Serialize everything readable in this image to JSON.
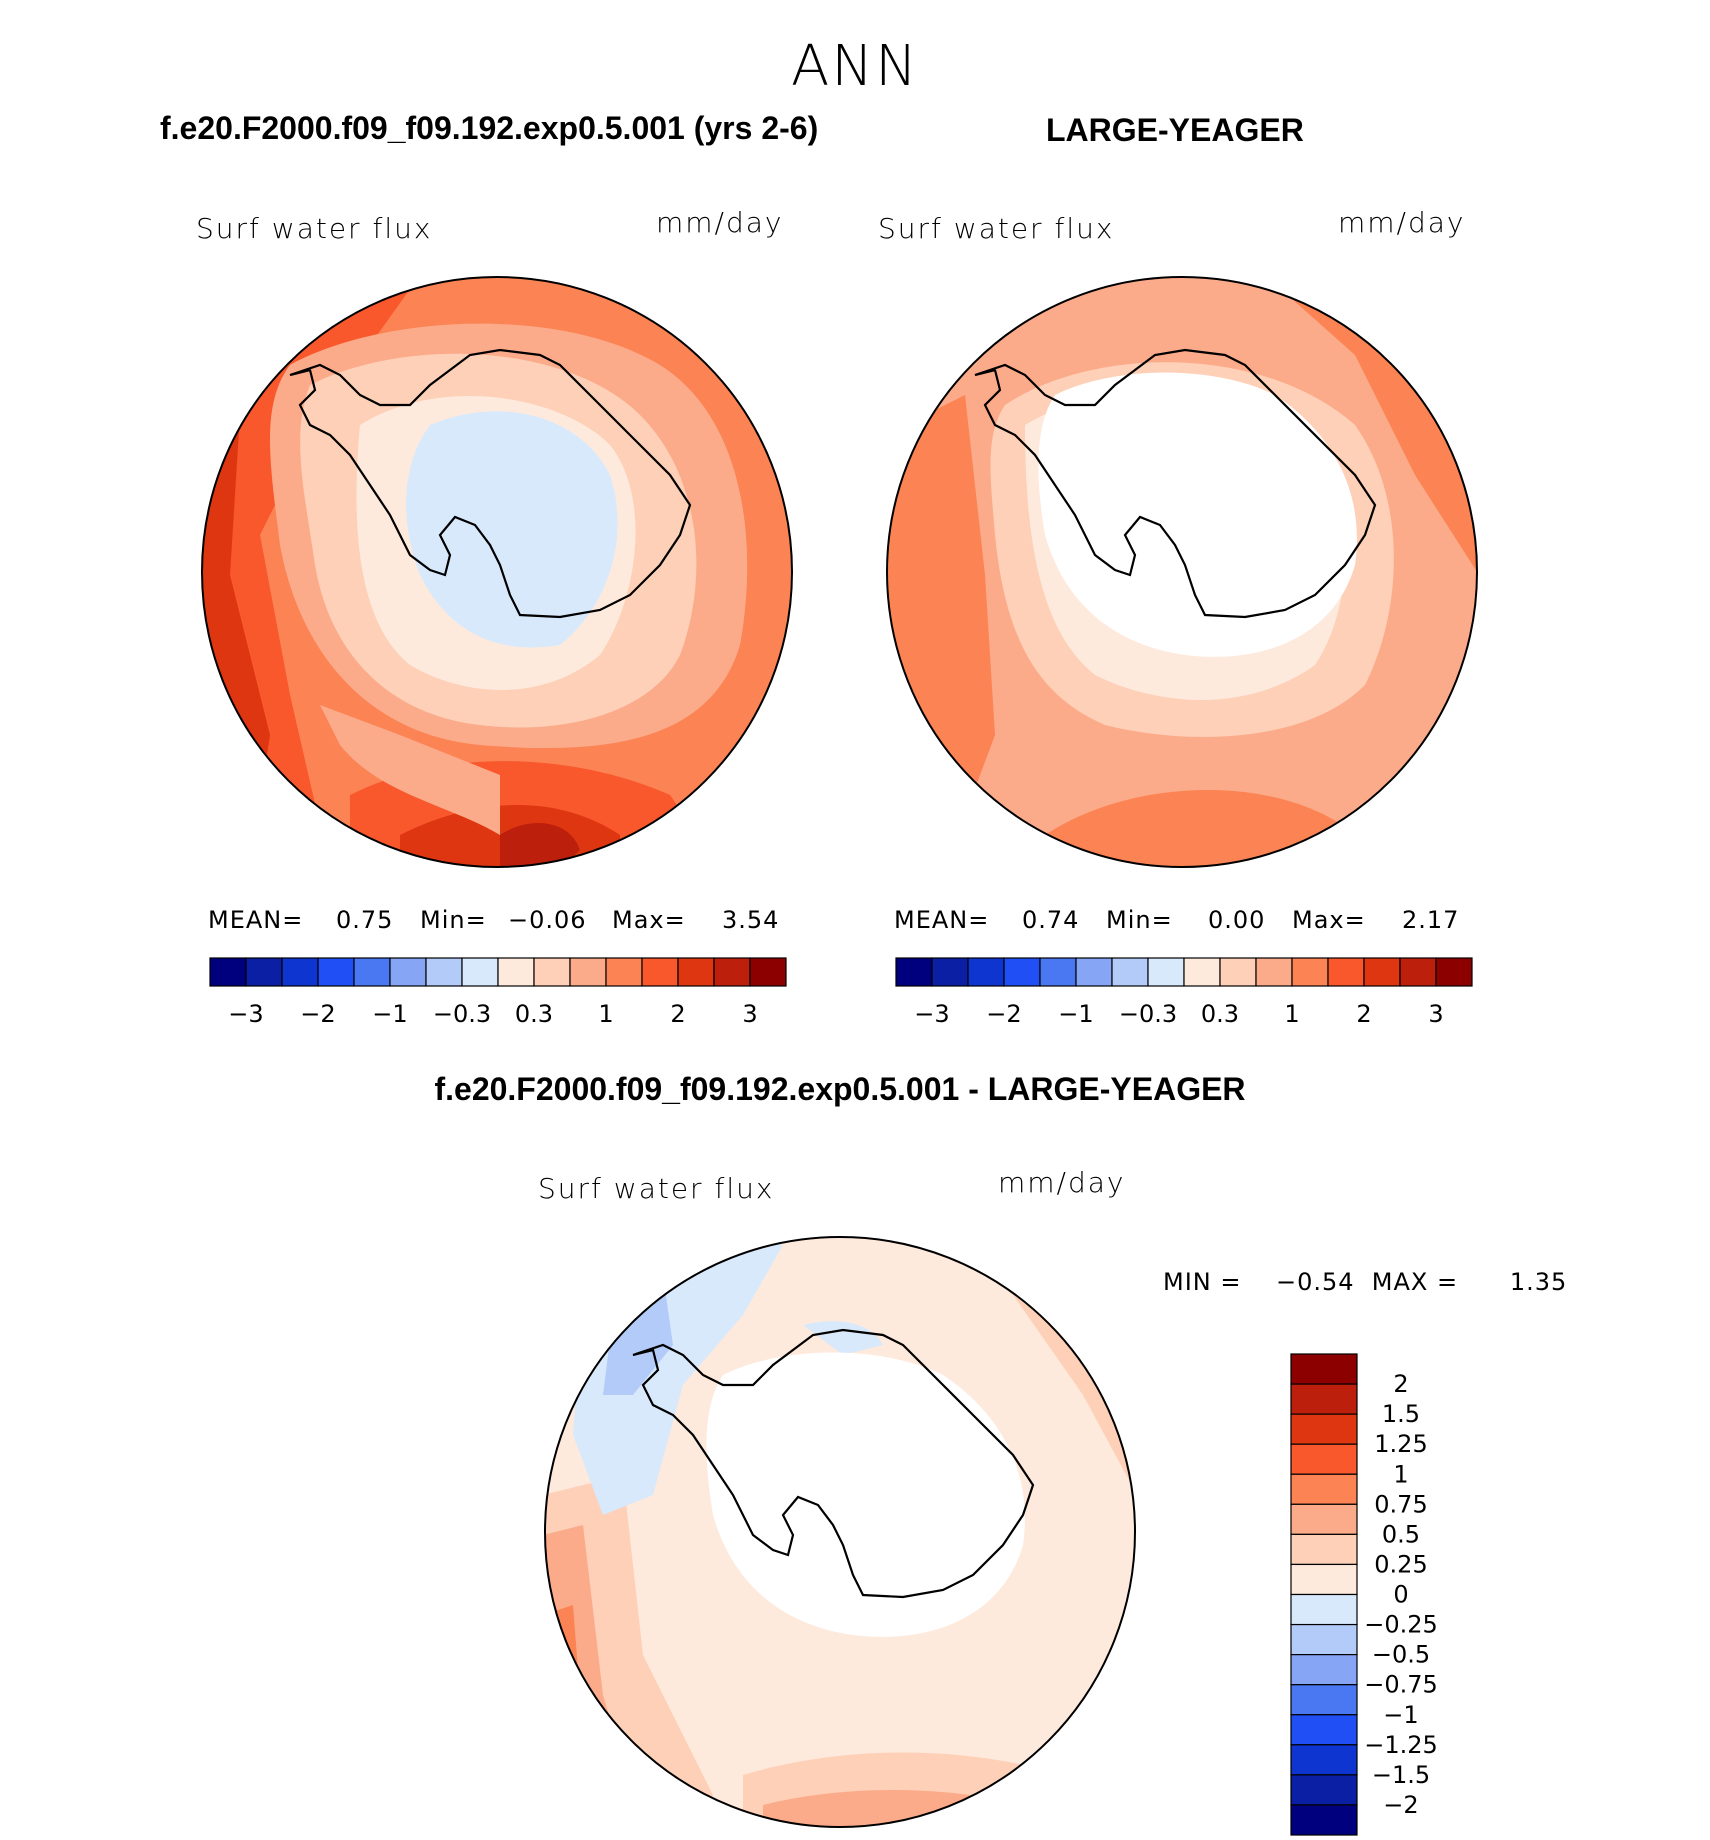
{
  "title": "ANN",
  "colors": {
    "abs_scale": [
      "#00007f",
      "#0b1fa4",
      "#0f35d1",
      "#1f4ff5",
      "#4a77f2",
      "#86a6f5",
      "#b3cbf8",
      "#d9e9fc",
      "#feeadc",
      "#fdd0b7",
      "#fcab8a",
      "#fb8354",
      "#f9572c",
      "#de3611",
      "#bc200d",
      "#8c0000"
    ],
    "diff_scale": [
      "#8c0000",
      "#bc200d",
      "#de3611",
      "#f9572c",
      "#fb8354",
      "#fcab8a",
      "#fdd0b7",
      "#feeadc",
      "#d9e9fc",
      "#b3cbf8",
      "#86a6f5",
      "#4a77f2",
      "#1f4ff5",
      "#0f35d1",
      "#0b1fa4",
      "#00007f"
    ],
    "land": "#ffffff",
    "outline": "#000000"
  },
  "panels": {
    "left": {
      "case_title": "f.e20.F2000.f09_f09.192.exp0.5.001 (yrs 2-6)",
      "variable": "Surf water flux",
      "units": "mm/day",
      "mean_label": "MEAN=",
      "mean": "0.75",
      "min_label": "Min=",
      "min": "−0.06",
      "max_label": "Max=",
      "max": "3.54"
    },
    "right": {
      "case_title": "LARGE-YEAGER",
      "variable": "Surf water flux",
      "units": "mm/day",
      "mean_label": "MEAN=",
      "mean": "0.74",
      "min_label": "Min=",
      "min": "0.00",
      "max_label": "Max=",
      "max": "2.17"
    },
    "diff": {
      "case_title": "f.e20.F2000.f09_f09.192.exp0.5.001 - LARGE-YEAGER",
      "variable": "Surf water flux",
      "units": "mm/day",
      "minmax": "MIN =    −0.54  MAX =      1.35"
    }
  },
  "chart_data": [
    {
      "type": "heatmap",
      "title": "Surf water flux",
      "subtitle": "f.e20.F2000.f09_f09.192.exp0.5.001 (yrs 2-6)",
      "units": "mm/day",
      "projection": "south polar stereographic",
      "stats": {
        "mean": 0.75,
        "min": -0.06,
        "max": 3.54
      },
      "colorbar_ticks": [
        "−3",
        "−2",
        "−1",
        "−0.3",
        "0.3",
        "1",
        "2",
        "3"
      ],
      "colorbar_levels": [
        -3,
        -2.5,
        -2,
        -1.5,
        -1,
        -0.6,
        -0.3,
        0,
        0.3,
        0.6,
        1,
        1.5,
        2,
        2.5,
        3
      ]
    },
    {
      "type": "heatmap",
      "title": "Surf water flux",
      "subtitle": "LARGE-YEAGER",
      "units": "mm/day",
      "projection": "south polar stereographic",
      "stats": {
        "mean": 0.74,
        "min": 0.0,
        "max": 2.17
      },
      "colorbar_ticks": [
        "−3",
        "−2",
        "−1",
        "−0.3",
        "0.3",
        "1",
        "2",
        "3"
      ],
      "colorbar_levels": [
        -3,
        -2.5,
        -2,
        -1.5,
        -1,
        -0.6,
        -0.3,
        0,
        0.3,
        0.6,
        1,
        1.5,
        2,
        2.5,
        3
      ]
    },
    {
      "type": "heatmap",
      "title": "Surf water flux",
      "subtitle": "f.e20.F2000.f09_f09.192.exp0.5.001 - LARGE-YEAGER",
      "units": "mm/day",
      "projection": "south polar stereographic",
      "stats": {
        "min": -0.54,
        "max": 1.35
      },
      "colorbar_ticks": [
        "2",
        "1.5",
        "1.25",
        "1",
        "0.75",
        "0.5",
        "0.25",
        "0",
        "−0.25",
        "−0.5",
        "−0.75",
        "−1",
        "−1.25",
        "−1.5",
        "−2"
      ]
    }
  ]
}
